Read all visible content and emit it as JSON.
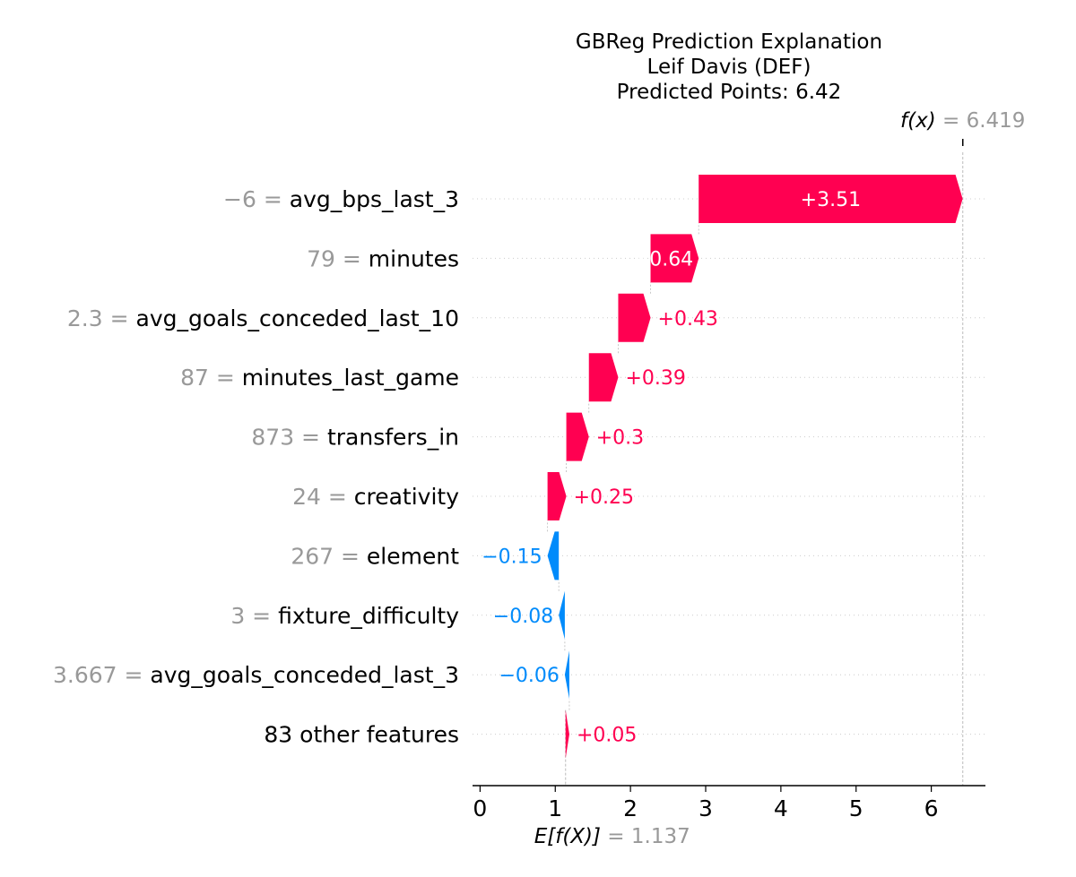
{
  "chart_data": {
    "type": "waterfall",
    "title_lines": [
      "GBReg Prediction Explanation",
      "Leif Davis (DEF)",
      "Predicted Points: 6.42"
    ],
    "fx_label": "f(x)",
    "fx_value_label": "= 6.419",
    "fx_value": 6.419,
    "ex_label": "E[f(X)]",
    "ex_value_label": "= 1.137",
    "ex_value": 1.137,
    "xlim": [
      -0.1,
      6.72
    ],
    "xticks": [
      0,
      1,
      2,
      3,
      4,
      5,
      6
    ],
    "positive_color": "#ff0051",
    "negative_color": "#008bfb",
    "value_label_color": "#999999",
    "features": [
      {
        "value": "−6",
        "name": "avg_bps_last_3",
        "contribution": 3.51,
        "label": "+3.51"
      },
      {
        "value": "79",
        "name": "minutes",
        "contribution": 0.64,
        "label": "+0.64"
      },
      {
        "value": "2.3",
        "name": "avg_goals_conceded_last_10",
        "contribution": 0.43,
        "label": "+0.43"
      },
      {
        "value": "87",
        "name": "minutes_last_game",
        "contribution": 0.39,
        "label": "+0.39"
      },
      {
        "value": "873",
        "name": "transfers_in",
        "contribution": 0.3,
        "label": "+0.3"
      },
      {
        "value": "24",
        "name": "creativity",
        "contribution": 0.25,
        "label": "+0.25"
      },
      {
        "value": "267",
        "name": "element",
        "contribution": -0.15,
        "label": "−0.15"
      },
      {
        "value": "3",
        "name": "fixture_difficulty",
        "contribution": -0.08,
        "label": "−0.08"
      },
      {
        "value": "3.667",
        "name": "avg_goals_conceded_last_3",
        "contribution": -0.06,
        "label": "−0.06"
      },
      {
        "value": "",
        "name": "83 other features",
        "contribution": 0.05,
        "label": "+0.05"
      }
    ]
  }
}
